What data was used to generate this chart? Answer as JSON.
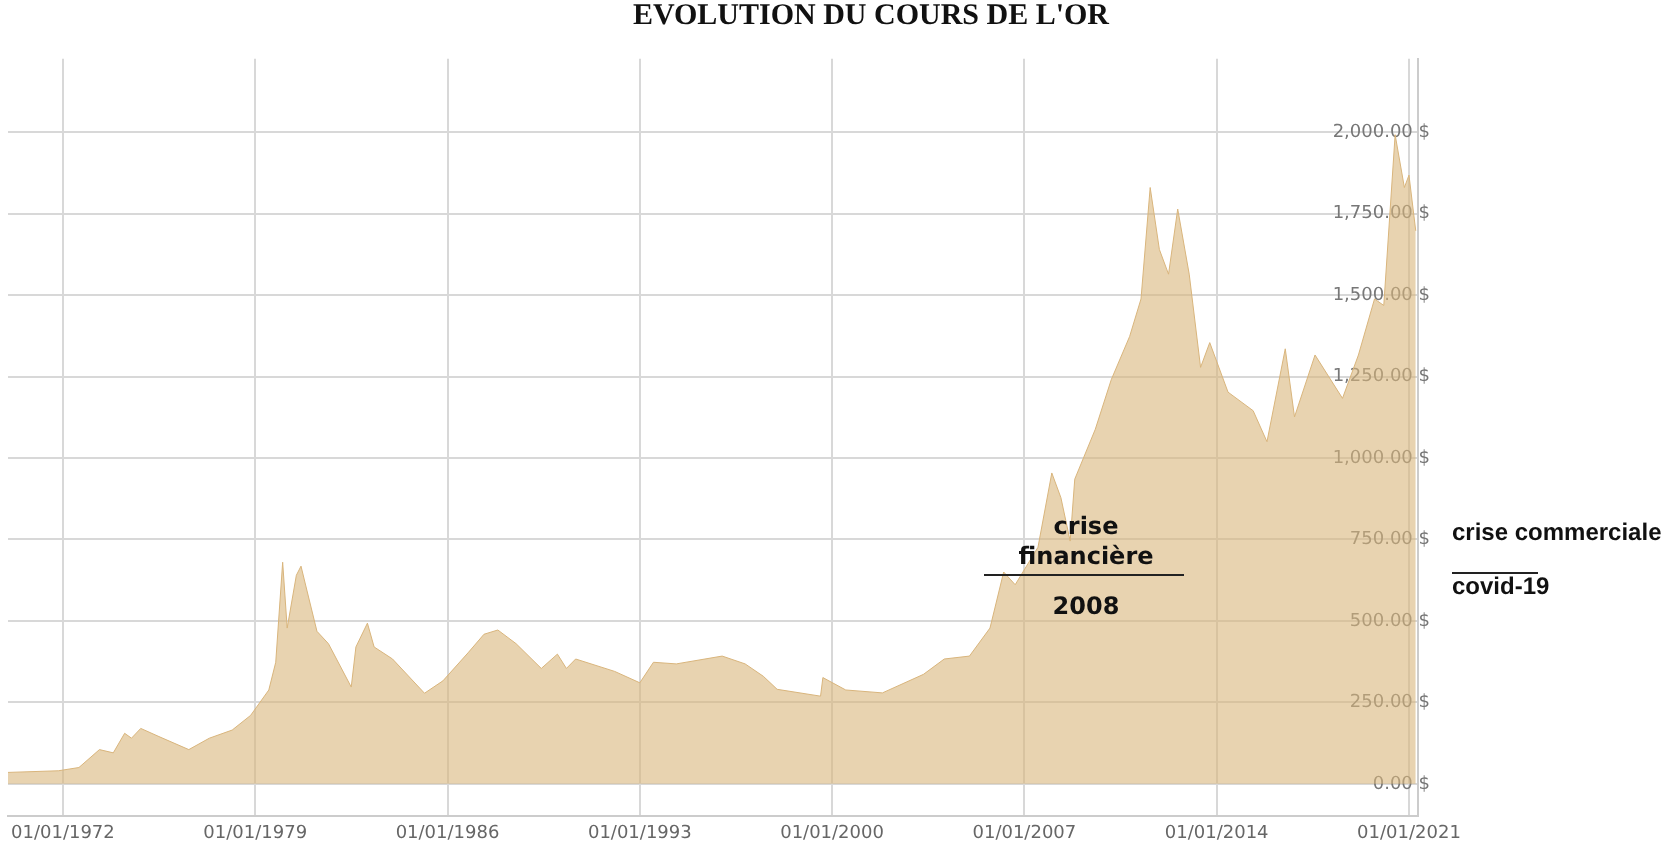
{
  "chart_data": {
    "type": "area",
    "title": "EVOLUTION DU COURS DE L'OR",
    "x": [
      "1970-01",
      "1971-11",
      "1972-08",
      "1973-05",
      "1973-11",
      "1974-04",
      "1974-07",
      "1974-11",
      "1975-07",
      "1976-08",
      "1977-05",
      "1978-03",
      "1978-11",
      "1979-07",
      "1979-10",
      "1980-01",
      "1980-03",
      "1980-07",
      "1980-09",
      "1980-11",
      "1981-04",
      "1981-09",
      "1982-07",
      "1982-09",
      "1983-02",
      "1983-05",
      "1984-01",
      "1985-03",
      "1985-11",
      "1986-10",
      "1987-05",
      "1987-11",
      "1988-07",
      "1989-06",
      "1990-01",
      "1990-05",
      "1990-09",
      "1992-02",
      "1993-01",
      "1993-07",
      "1994-05",
      "1996-01",
      "1996-11",
      "1997-07",
      "1998-01",
      "1999-08",
      "1999-09",
      "2000-07",
      "2001-11",
      "2003-05",
      "2004-02",
      "2005-01",
      "2005-10",
      "2006-04",
      "2006-09",
      "2007-07",
      "2008-01",
      "2008-05",
      "2008-09",
      "2008-11",
      "2009-08",
      "2010-03",
      "2010-11",
      "2011-04",
      "2011-08",
      "2011-12",
      "2012-04",
      "2012-08",
      "2013-01",
      "2013-06",
      "2013-10",
      "2014-06",
      "2015-05",
      "2015-11",
      "2016-07",
      "2016-11",
      "2017-08",
      "2018-08",
      "2019-03",
      "2019-10",
      "2020-02",
      "2020-07",
      "2020-11",
      "2021-01",
      "2021-04"
    ],
    "values": [
      35,
      40,
      50,
      105,
      95,
      155,
      140,
      170,
      145,
      105,
      140,
      165,
      210,
      288,
      373,
      680,
      478,
      640,
      668,
      610,
      468,
      430,
      297,
      420,
      493,
      420,
      383,
      278,
      316,
      402,
      459,
      472,
      430,
      354,
      398,
      354,
      383,
      345,
      310,
      373,
      368,
      392,
      368,
      330,
      290,
      269,
      326,
      288,
      279,
      336,
      383,
      392,
      478,
      650,
      611,
      726,
      954,
      878,
      745,
      935,
      1088,
      1240,
      1373,
      1488,
      1830,
      1640,
      1564,
      1764,
      1564,
      1278,
      1354,
      1202,
      1145,
      1050,
      1335,
      1126,
      1316,
      1183,
      1316,
      1488,
      1468,
      1992,
      1830,
      1868,
      1697
    ],
    "color": "#d9b57c",
    "xlim": [
      "1970-01",
      "2021-05"
    ],
    "xticks": [
      {
        "value": "1972-01-01",
        "label": "01/01/1972"
      },
      {
        "value": "1979-01-01",
        "label": "01/01/1979"
      },
      {
        "value": "1986-01-01",
        "label": "01/01/1986"
      },
      {
        "value": "1993-01-01",
        "label": "01/01/1993"
      },
      {
        "value": "2000-01-01",
        "label": "01/01/2000"
      },
      {
        "value": "2007-01-01",
        "label": "01/01/2007"
      },
      {
        "value": "2014-01-01",
        "label": "01/01/2014"
      },
      {
        "value": "2021-01-01",
        "label": "01/01/2021"
      }
    ],
    "ylim": [
      -100,
      2225
    ],
    "yticks": [
      {
        "value": 0,
        "label": "0.00 $"
      },
      {
        "value": 250,
        "label": "250.00 $"
      },
      {
        "value": 500,
        "label": "500.00 $"
      },
      {
        "value": 750,
        "label": "750.00 $"
      },
      {
        "value": 1000,
        "label": "1,000.00 $"
      },
      {
        "value": 1250,
        "label": "1,250.00 $"
      },
      {
        "value": 1500,
        "label": "1,500.00 $"
      },
      {
        "value": 1750,
        "label": "1,750.00 $"
      },
      {
        "value": 2000,
        "label": "2,000.00 $"
      }
    ],
    "grid": true,
    "legend": false,
    "annotations": [
      "crise\nfinancière\n2008",
      "crise commerciale\ncovid-19"
    ]
  }
}
